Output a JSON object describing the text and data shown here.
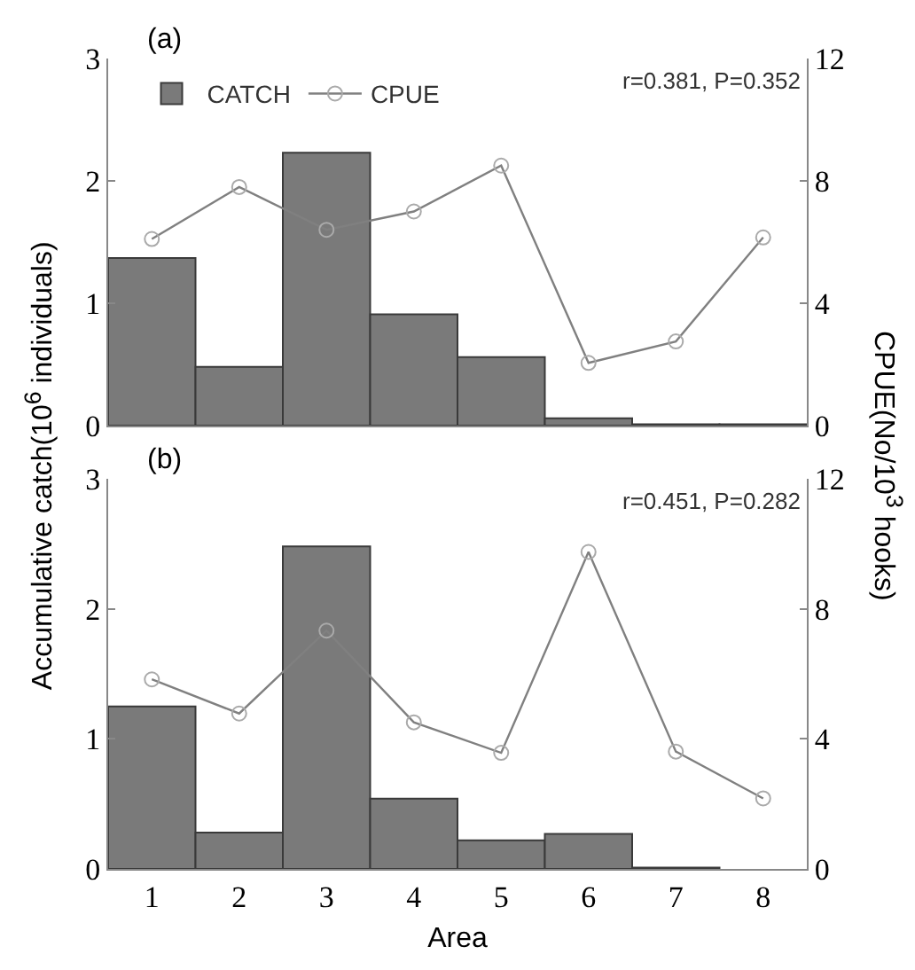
{
  "chart_data": [
    {
      "type": "bar",
      "categories": [
        "1",
        "2",
        "3",
        "4",
        "5",
        "6",
        "7",
        "8"
      ],
      "ylabel": "Accumulative catch(10$^{6}$ individuals)",
      "y2label": "CPUE(No/10$^{3}$ hooks)",
      "annotations": [
        "(a)",
        "r=0.381, P=0.352"
      ],
      "ylim": [
        0,
        3
      ],
      "yticks": [
        0,
        1,
        2,
        3
      ],
      "y2lim": [
        0,
        12
      ],
      "y2ticks": [
        0,
        4,
        8,
        12
      ],
      "legend": "top left",
      "tick_labels": "y",
      "marker": "circle",
      "grid": false,
      "series": [
        {
          "name": "CATCH",
          "color": "#7a7a7a",
          "values": [
            1.37,
            0.48,
            2.23,
            0.91,
            0.56,
            0.06,
            0.01,
            0.01
          ]
        },
        {
          "name": "CPUE",
          "type": "line",
          "axis": "y2",
          "color": "#808080",
          "values": [
            6.1,
            7.8,
            6.4,
            7.0,
            8.5,
            2.05,
            2.75,
            6.15
          ]
        }
      ]
    },
    {
      "type": "bar",
      "categories": [
        "1",
        "2",
        "3",
        "4",
        "5",
        "6",
        "7",
        "8"
      ],
      "xlabel": "Area",
      "annotations": [
        "(b)",
        "r=0.451, P=0.282"
      ],
      "ylim": [
        0,
        3
      ],
      "yticks": [
        0,
        1,
        2,
        3
      ],
      "y2lim": [
        0,
        12
      ],
      "y2ticks": [
        0,
        4,
        8,
        12
      ],
      "legend": false,
      "marker": "circle",
      "grid": false,
      "series": [
        {
          "color": "#7a7a7a",
          "values": [
            1.25,
            0.28,
            2.48,
            0.54,
            0.22,
            0.27,
            0.01,
            0
          ]
        },
        {
          "type": "line",
          "axis": "y2",
          "color": "#808080",
          "values": [
            5.83,
            4.78,
            7.33,
            4.51,
            3.57,
            9.75,
            3.61,
            2.17
          ]
        }
      ]
    }
  ]
}
